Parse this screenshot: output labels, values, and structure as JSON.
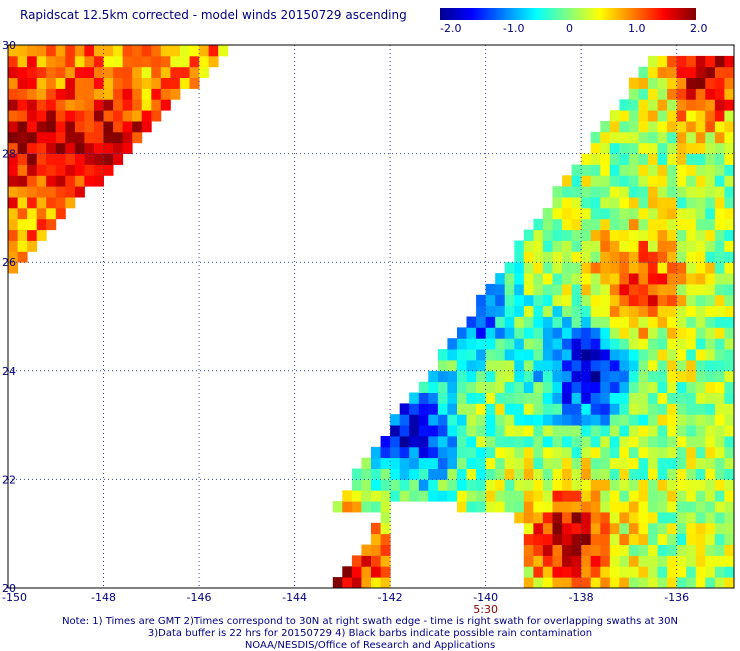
{
  "header": {
    "title": "Rapidscat 12.5km corrected - model winds 20150729 ascending"
  },
  "colorbar": {
    "labels": [
      "-2.0",
      "-1.0",
      "0",
      "1.0",
      "2.0"
    ],
    "min": -2.0,
    "max": 2.0,
    "colors": [
      "#00008f",
      "#0000ff",
      "#0080ff",
      "#00ffff",
      "#80ff80",
      "#ffff00",
      "#ff8000",
      "#ff0000",
      "#800000"
    ]
  },
  "chart_data": {
    "type": "heatmap",
    "title": "Rapidscat 12.5km corrected - model winds 20150729 ascending",
    "xlim": [
      -150,
      -134.8
    ],
    "ylim": [
      20,
      30
    ],
    "x_ticks": [
      "-150",
      "-148",
      "-146",
      "-144",
      "-142",
      "-140",
      "-138",
      "-136"
    ],
    "y_ticks": [
      "20",
      "22",
      "24",
      "26",
      "28",
      "30"
    ],
    "time_labels": [
      {
        "x": -140,
        "label": "5:30"
      }
    ],
    "color_range": [
      -2.0,
      2.0
    ],
    "grid": true,
    "cell_size_deg": 0.2,
    "swaths": [
      {
        "name": "left",
        "lon_range": [
          -150,
          -145.3
        ],
        "lat_range": [
          25.8,
          30
        ],
        "mean_value": 1.0
      },
      {
        "name": "right",
        "lon_range": [
          -143.2,
          -134.8
        ],
        "lat_range": [
          20,
          29.8
        ],
        "mean_value": 0.2
      }
    ],
    "features": [
      {
        "lon": -149.5,
        "lat": 28.3,
        "value": 2.0
      },
      {
        "lon": -147.9,
        "lat": 28.0,
        "value": 2.0
      },
      {
        "lon": -137.9,
        "lat": 24.0,
        "value": -2.0
      },
      {
        "lon": -140.5,
        "lat": 25.3,
        "value": -2.0
      },
      {
        "lon": -141.5,
        "lat": 22.9,
        "value": -1.8
      },
      {
        "lon": -138.2,
        "lat": 20.9,
        "value": 2.0
      },
      {
        "lon": -135.3,
        "lat": 29.5,
        "value": 2.0
      },
      {
        "lon": -136.8,
        "lat": 25.6,
        "value": 1.5
      },
      {
        "lon": -143.0,
        "lat": 20.4,
        "value": 2.0
      }
    ]
  },
  "footer": {
    "note1": "Note: 1) Times are GMT 2)Times correspond to 30N at right swath edge - time is right swath for overlapping swaths at 30N",
    "note2": "3)Data buffer is 22 hrs for 20150729 4) Black barbs indicate possible rain contamination",
    "credit": "NOAA/NESDIS/Office of Research and Applications"
  }
}
